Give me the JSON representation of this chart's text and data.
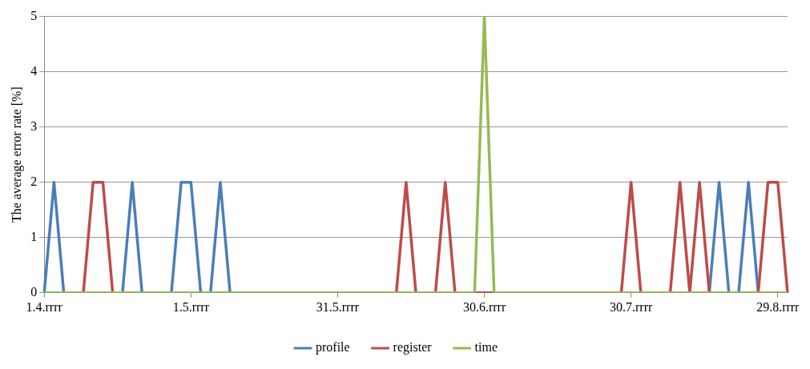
{
  "chart_data": {
    "type": "line",
    "ylabel": "The average error rate [%]",
    "categories": [
      "1.4.rrrr",
      null,
      null,
      null,
      null,
      null,
      null,
      null,
      null,
      null,
      null,
      null,
      null,
      null,
      null,
      "1.5.rrrr",
      null,
      null,
      null,
      null,
      null,
      null,
      null,
      null,
      null,
      null,
      null,
      null,
      null,
      null,
      "31.5.rrrr",
      null,
      null,
      null,
      null,
      null,
      null,
      null,
      null,
      null,
      null,
      null,
      null,
      null,
      null,
      "30.6.rrrr",
      null,
      null,
      null,
      null,
      null,
      null,
      null,
      null,
      null,
      null,
      null,
      null,
      null,
      null,
      "30.7.rrrr",
      null,
      null,
      null,
      null,
      null,
      null,
      null,
      null,
      null,
      null,
      null,
      null,
      null,
      null,
      "29.8.rrrr",
      null
    ],
    "series": [
      {
        "name": "profile",
        "color": "#4a7ebb",
        "values": [
          0,
          2,
          0,
          null,
          null,
          null,
          null,
          null,
          0,
          2,
          0,
          null,
          null,
          0,
          2,
          2,
          0,
          0,
          2,
          0,
          null,
          null,
          null,
          null,
          null,
          null,
          null,
          null,
          null,
          null,
          null,
          null,
          null,
          null,
          null,
          null,
          null,
          null,
          null,
          null,
          null,
          null,
          null,
          null,
          null,
          null,
          null,
          null,
          null,
          null,
          null,
          null,
          null,
          null,
          null,
          null,
          null,
          null,
          null,
          null,
          null,
          null,
          null,
          null,
          null,
          null,
          null,
          null,
          0,
          2,
          0,
          0,
          2,
          0,
          null,
          null,
          null
        ]
      },
      {
        "name": "register",
        "color": "#be4b48",
        "values": [
          null,
          null,
          null,
          null,
          0,
          2,
          2,
          0,
          null,
          null,
          null,
          null,
          null,
          null,
          null,
          null,
          null,
          null,
          null,
          null,
          null,
          null,
          null,
          null,
          null,
          null,
          null,
          null,
          null,
          null,
          null,
          null,
          null,
          null,
          null,
          null,
          0,
          2,
          0,
          null,
          0,
          2,
          0,
          null,
          0,
          0,
          0,
          null,
          null,
          null,
          null,
          null,
          null,
          null,
          null,
          null,
          null,
          null,
          null,
          0,
          2,
          0,
          null,
          null,
          0,
          2,
          0,
          2,
          0,
          null,
          null,
          null,
          null,
          0,
          2,
          2,
          0
        ]
      },
      {
        "name": "time",
        "color": "#98b954",
        "values": [
          0,
          0,
          0,
          0,
          0,
          0,
          0,
          0,
          0,
          0,
          0,
          0,
          0,
          0,
          0,
          0,
          0,
          0,
          0,
          0,
          0,
          0,
          0,
          0,
          0,
          0,
          0,
          0,
          0,
          0,
          0,
          0,
          0,
          0,
          0,
          0,
          0,
          0,
          0,
          0,
          0,
          0,
          0,
          0,
          0,
          5,
          0,
          0,
          0,
          0,
          0,
          0,
          0,
          0,
          0,
          0,
          0,
          0,
          0,
          0,
          0,
          0,
          0,
          0,
          0,
          0,
          0,
          0,
          0,
          0,
          0,
          0,
          0,
          0,
          0,
          0,
          0
        ]
      }
    ],
    "ylim": [
      0,
      5
    ],
    "yticks": [
      0,
      1,
      2,
      3,
      4,
      5
    ],
    "grid": "y",
    "legend": "bottom",
    "marker": "none",
    "line_style": "solid"
  }
}
